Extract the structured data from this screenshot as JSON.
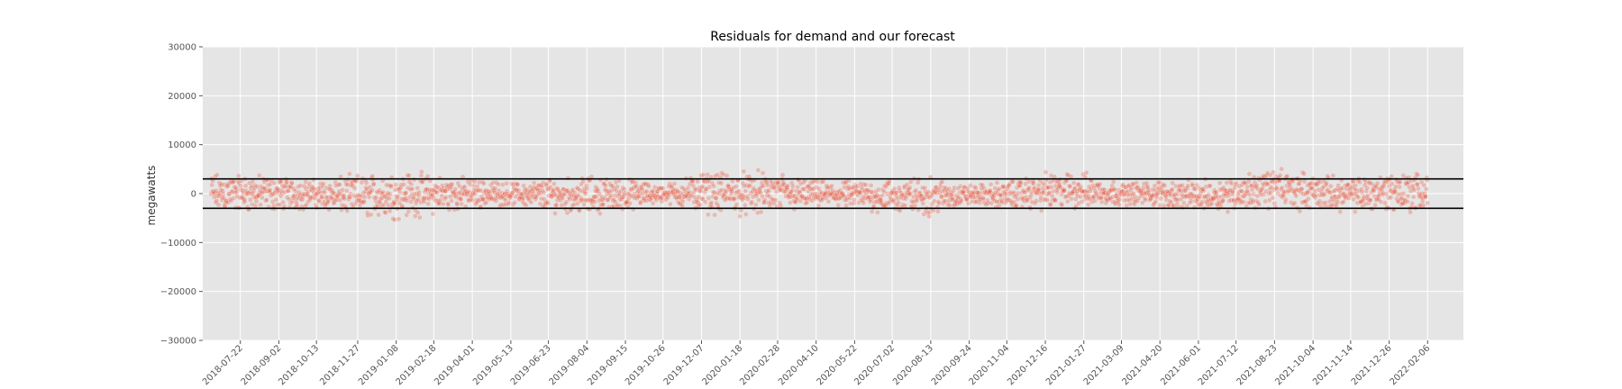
{
  "chart_data": {
    "type": "scatter",
    "title": "Residuals for demand and our forecast",
    "xlabel": "",
    "ylabel": "megawatts",
    "ylim": [
      -30000,
      30000
    ],
    "x_range": [
      "2018-06-11",
      "2022-03-17"
    ],
    "data_range": [
      "2018-06-20",
      "2022-02-06"
    ],
    "y_ticks": [
      30000,
      20000,
      10000,
      0,
      -10000,
      -20000,
      -30000
    ],
    "y_tick_labels": [
      "30000",
      "20000",
      "10000",
      "0",
      "−10000",
      "−20000",
      "−30000"
    ],
    "x_ticks": [
      "2018-07-22",
      "2018-09-02",
      "2018-10-13",
      "2018-11-27",
      "2019-01-08",
      "2019-02-18",
      "2019-04-01",
      "2019-05-13",
      "2019-06-23",
      "2019-08-04",
      "2019-09-15",
      "2019-10-26",
      "2019-12-07",
      "2020-01-18",
      "2020-02-28",
      "2020-04-10",
      "2020-05-22",
      "2020-07-02",
      "2020-08-13",
      "2020-09-24",
      "2020-11-04",
      "2020-12-16",
      "2021-01-27",
      "2021-03-09",
      "2021-04-20",
      "2021-06-01",
      "2021-07-12",
      "2021-08-23",
      "2021-10-04",
      "2021-11-14",
      "2021-12-26",
      "2022-02-06"
    ],
    "hlines": [
      3000,
      -3000
    ],
    "series": [
      {
        "color": "#e24a33",
        "envelope": [
          {
            "date": "2018-07-01",
            "low": -4500,
            "high": 4800
          },
          {
            "date": "2018-09-02",
            "low": -4000,
            "high": 4000
          },
          {
            "date": "2018-10-13",
            "low": -3500,
            "high": 3200
          },
          {
            "date": "2018-11-27",
            "low": -5500,
            "high": 4500
          },
          {
            "date": "2019-01-08",
            "low": -5800,
            "high": 5500
          },
          {
            "date": "2019-02-18",
            "low": -4800,
            "high": 4500
          },
          {
            "date": "2019-04-01",
            "low": -3500,
            "high": 3500
          },
          {
            "date": "2019-05-13",
            "low": -2600,
            "high": 2500
          },
          {
            "date": "2019-06-23",
            "low": -4000,
            "high": 3500
          },
          {
            "date": "2019-08-04",
            "low": -4800,
            "high": 4000
          },
          {
            "date": "2019-09-15",
            "low": -4000,
            "high": 3500
          },
          {
            "date": "2019-10-26",
            "low": -2000,
            "high": 2000
          },
          {
            "date": "2019-12-07",
            "low": -4500,
            "high": 5000
          },
          {
            "date": "2020-01-18",
            "low": -5000,
            "high": 5000
          },
          {
            "date": "2020-02-28",
            "low": -5000,
            "high": 5000
          },
          {
            "date": "2020-04-10",
            "low": -3000,
            "high": 2800
          },
          {
            "date": "2020-05-22",
            "low": -3500,
            "high": 3000
          },
          {
            "date": "2020-07-02",
            "low": -4800,
            "high": 3500
          },
          {
            "date": "2020-08-13",
            "low": -5000,
            "high": 4000
          },
          {
            "date": "2020-09-24",
            "low": -2500,
            "high": 2000
          },
          {
            "date": "2020-11-04",
            "low": -3500,
            "high": 2800
          },
          {
            "date": "2020-12-16",
            "low": -4000,
            "high": 4800
          },
          {
            "date": "2021-01-27",
            "low": -3500,
            "high": 4800
          },
          {
            "date": "2021-03-09",
            "low": -2500,
            "high": 2500
          },
          {
            "date": "2021-04-20",
            "low": -3000,
            "high": 3000
          },
          {
            "date": "2021-06-01",
            "low": -4000,
            "high": 3000
          },
          {
            "date": "2021-07-12",
            "low": -3800,
            "high": 4000
          },
          {
            "date": "2021-08-23",
            "low": -3500,
            "high": 6000
          },
          {
            "date": "2021-10-04",
            "low": -3800,
            "high": 4500
          },
          {
            "date": "2021-11-14",
            "low": -4000,
            "high": 3500
          },
          {
            "date": "2021-12-26",
            "low": -4500,
            "high": 5500
          },
          {
            "date": "2022-02-06",
            "low": -4800,
            "high": 5200
          }
        ]
      }
    ],
    "grid": true,
    "legend": "none",
    "background": "#e5e5e5",
    "gridline_color": "#ffffff"
  }
}
